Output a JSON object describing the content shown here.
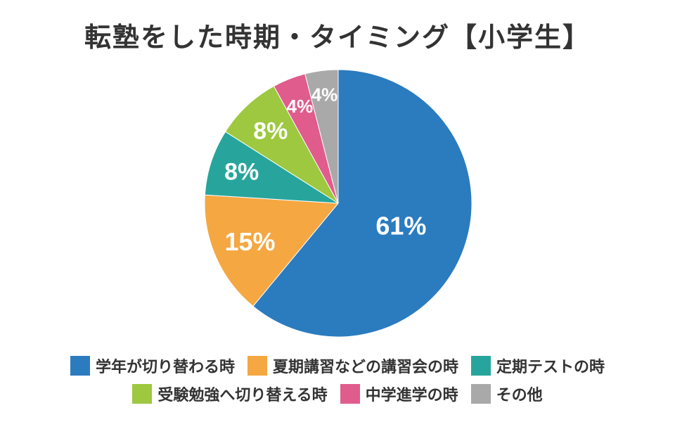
{
  "chart_data": {
    "type": "pie",
    "title": "転塾をした時期・タイミング【小学生】",
    "series": [
      {
        "name": "学年が切り替わる時",
        "value": 61,
        "label": "61%",
        "color": "#2b7bbf"
      },
      {
        "name": "夏期講習などの講習会の時",
        "value": 15,
        "label": "15%",
        "color": "#f5a742"
      },
      {
        "name": "定期テストの時",
        "value": 8,
        "label": "8%",
        "color": "#27a59c"
      },
      {
        "name": "受験勉強へ切り替える時",
        "value": 8,
        "label": "8%",
        "color": "#9dc83f"
      },
      {
        "name": "中学進学の時",
        "value": 4,
        "label": "4%",
        "color": "#e05c8c"
      },
      {
        "name": "その他",
        "value": 4,
        "label": "4%",
        "color": "#a9a9a9"
      }
    ],
    "legend": "bottom",
    "legend_rows": [
      [
        0,
        1,
        2
      ],
      [
        3,
        4,
        5
      ]
    ]
  }
}
